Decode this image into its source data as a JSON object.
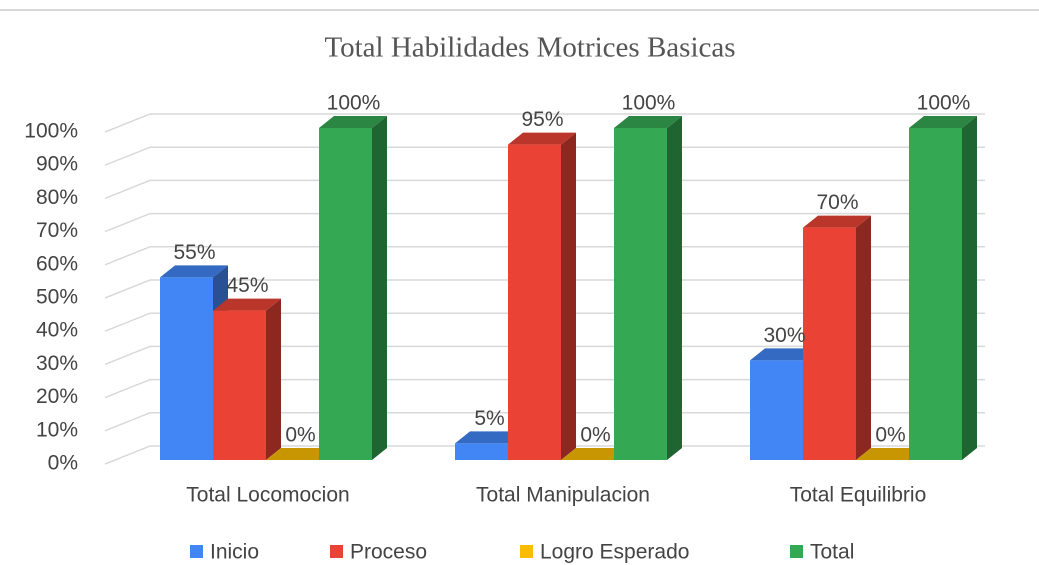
{
  "chart_data": {
    "type": "bar3d",
    "title": "Total Habilidades Motrices Basicas",
    "categories": [
      "Total Locomocion",
      "Total Manipulacion",
      "Total Equilibrio"
    ],
    "series": [
      {
        "name": "Inicio",
        "color": "#4285f4",
        "values": [
          55,
          5,
          30
        ],
        "value_labels": [
          "55%",
          "5%",
          "30%"
        ]
      },
      {
        "name": "Proceso",
        "color": "#ea4335",
        "values": [
          45,
          95,
          70
        ],
        "value_labels": [
          "45%",
          "95%",
          "70%"
        ]
      },
      {
        "name": "Logro Esperado",
        "color": "#fbbc04",
        "values": [
          0,
          0,
          0
        ],
        "value_labels": [
          "0%",
          "0%",
          "0%"
        ]
      },
      {
        "name": "Total",
        "color": "#34a853",
        "values": [
          100,
          100,
          100
        ],
        "value_labels": [
          "100%",
          "100%",
          "100%"
        ]
      }
    ],
    "ylim": [
      0,
      100
    ],
    "yticks": [
      {
        "value": 0,
        "label": "0%"
      },
      {
        "value": 10,
        "label": "10%"
      },
      {
        "value": 20,
        "label": "20%"
      },
      {
        "value": 30,
        "label": "30%"
      },
      {
        "value": 40,
        "label": "40%"
      },
      {
        "value": 50,
        "label": "50%"
      },
      {
        "value": 60,
        "label": "60%"
      },
      {
        "value": 70,
        "label": "70%"
      },
      {
        "value": 80,
        "label": "80%"
      },
      {
        "value": 90,
        "label": "90%"
      },
      {
        "value": 100,
        "label": "100%"
      }
    ],
    "grid": true,
    "legend": "bottom"
  }
}
